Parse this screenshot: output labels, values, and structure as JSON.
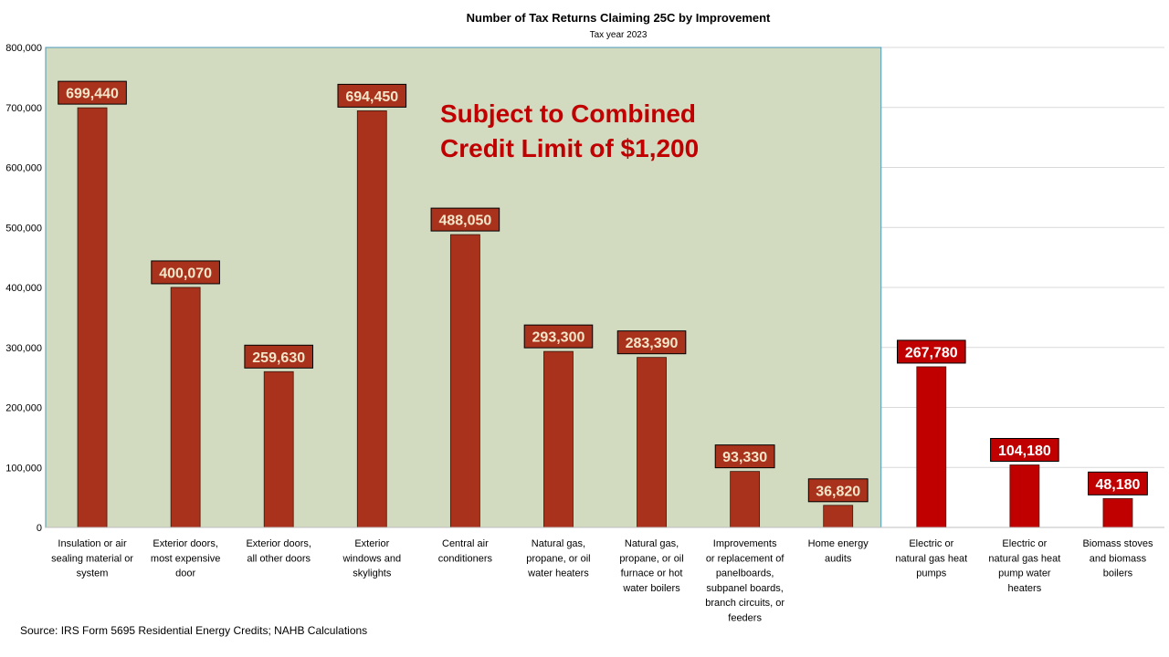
{
  "chart_data": {
    "type": "bar",
    "title": "Number of Tax Returns Claiming 25C by Improvement",
    "subtitle": "Tax year 2023",
    "ylim": [
      0,
      800000
    ],
    "yticks": [
      "0",
      "100,000",
      "200,000",
      "300,000",
      "400,000",
      "500,000",
      "600,000",
      "700,000",
      "800,000"
    ],
    "ytick_values": [
      0,
      100000,
      200000,
      300000,
      400000,
      500000,
      600000,
      700000,
      800000
    ],
    "grid": true,
    "categories": [
      [
        "Insulation or air",
        "sealing material or",
        "system"
      ],
      [
        "Exterior doors,",
        "most expensive",
        "door"
      ],
      [
        "Exterior doors,",
        "all other doors"
      ],
      [
        "Exterior",
        "windows and",
        "skylights"
      ],
      [
        "Central air",
        "conditioners"
      ],
      [
        "Natural gas,",
        "propane, or oil",
        "water heaters"
      ],
      [
        "Natural gas,",
        "propane, or oil",
        "furnace or hot",
        "water boilers"
      ],
      [
        "Improvements",
        "or replacement of",
        "panelboards,",
        "subpanel boards,",
        "branch circuits, or",
        "feeders"
      ],
      [
        "Home energy",
        "audits"
      ],
      [
        "Electric or",
        "natural gas heat",
        "pumps"
      ],
      [
        "Electric or",
        "natural gas heat",
        "pump water",
        "heaters"
      ],
      [
        "Biomass stoves",
        "and biomass",
        "boilers"
      ]
    ],
    "values": [
      699440,
      400070,
      259630,
      694450,
      488050,
      293300,
      283390,
      93330,
      36820,
      267780,
      104180,
      48180
    ],
    "data_labels": [
      "699,440",
      "400,070",
      "259,630",
      "694,450",
      "488,050",
      "293,300",
      "283,390",
      "93,330",
      "36,820",
      "267,780",
      "104,180",
      "48,180"
    ],
    "group": [
      "limited",
      "limited",
      "limited",
      "limited",
      "limited",
      "limited",
      "limited",
      "limited",
      "limited",
      "unlimited",
      "unlimited",
      "unlimited"
    ],
    "annotation": [
      "Subject to Combined",
      "Credit Limit of $1,200"
    ],
    "colors": {
      "limited_bar": "#a8321c",
      "unlimited_bar": "#c00000",
      "shade_fill": "#d2dac0",
      "shade_border": "#4a9ab8",
      "annotation": "#c00000",
      "gridline": "#d9d9d9"
    }
  },
  "source": "Source: IRS Form 5695  Residential Energy Credits; NAHB Calculations"
}
